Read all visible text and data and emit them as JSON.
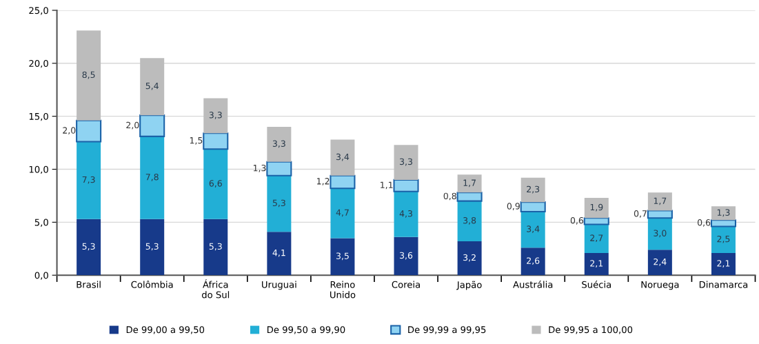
{
  "chart_data": {
    "type": "bar",
    "stacked": true,
    "categories": [
      "Brasil",
      "Colômbia",
      "África\ndo Sul",
      "Uruguai",
      "Reino\nUnido",
      "Coreia",
      "Japão",
      "Austrália",
      "Suécia",
      "Noruega",
      "Dinamarca"
    ],
    "series": [
      {
        "name": "De 99,00 a 99,50",
        "color": "#173a8a",
        "values": [
          5.3,
          5.3,
          5.3,
          4.1,
          3.5,
          3.6,
          3.2,
          2.6,
          2.1,
          2.4,
          2.1
        ],
        "value_labels": [
          "5,3",
          "5,3",
          "5,3",
          "4,1",
          "3,5",
          "3,6",
          "3,2",
          "2,6",
          "2,1",
          "2,4",
          "2,1"
        ]
      },
      {
        "name": "De 99,50 a 99,90",
        "color": "#22afd6",
        "values": [
          7.3,
          7.8,
          6.6,
          5.3,
          4.7,
          4.3,
          3.8,
          3.4,
          2.7,
          3.0,
          2.5
        ],
        "value_labels": [
          "7,3",
          "7,8",
          "6,6",
          "5,3",
          "4,7",
          "4,3",
          "3,8",
          "3,4",
          "2,7",
          "3,0",
          "2,5"
        ]
      },
      {
        "name": "De 99,99 a 99,95",
        "color": "#8fd3f2",
        "values": [
          2.0,
          2.0,
          1.5,
          1.3,
          1.2,
          1.1,
          0.8,
          0.9,
          0.6,
          0.7,
          0.6
        ],
        "value_labels": [
          "2,0",
          "2,0",
          "1,5",
          "1,3",
          "1,2",
          "1,1",
          "0,8",
          "0,9",
          "0,6",
          "0,7",
          "0,6"
        ]
      },
      {
        "name": "De 99,95 a 100,00",
        "color": "#bcbcbc",
        "values": [
          8.5,
          5.4,
          3.3,
          3.3,
          3.4,
          3.3,
          1.7,
          2.3,
          1.9,
          1.7,
          1.3
        ],
        "value_labels": [
          "8,5",
          "5,4",
          "3,3",
          "3,3",
          "3,4",
          "3,3",
          "1,7",
          "2,3",
          "1,9",
          "1,7",
          "1,3"
        ]
      }
    ],
    "ylim": [
      0,
      25
    ],
    "yticks": [
      {
        "value": 0,
        "label": "0,0"
      },
      {
        "value": 5,
        "label": "5,0"
      },
      {
        "value": 10,
        "label": "10,0"
      },
      {
        "value": 15,
        "label": "15,0"
      },
      {
        "value": 20,
        "label": "20,0"
      },
      {
        "value": 25,
        "label": "25,0"
      }
    ],
    "grid": "y",
    "legend": "bottom"
  }
}
